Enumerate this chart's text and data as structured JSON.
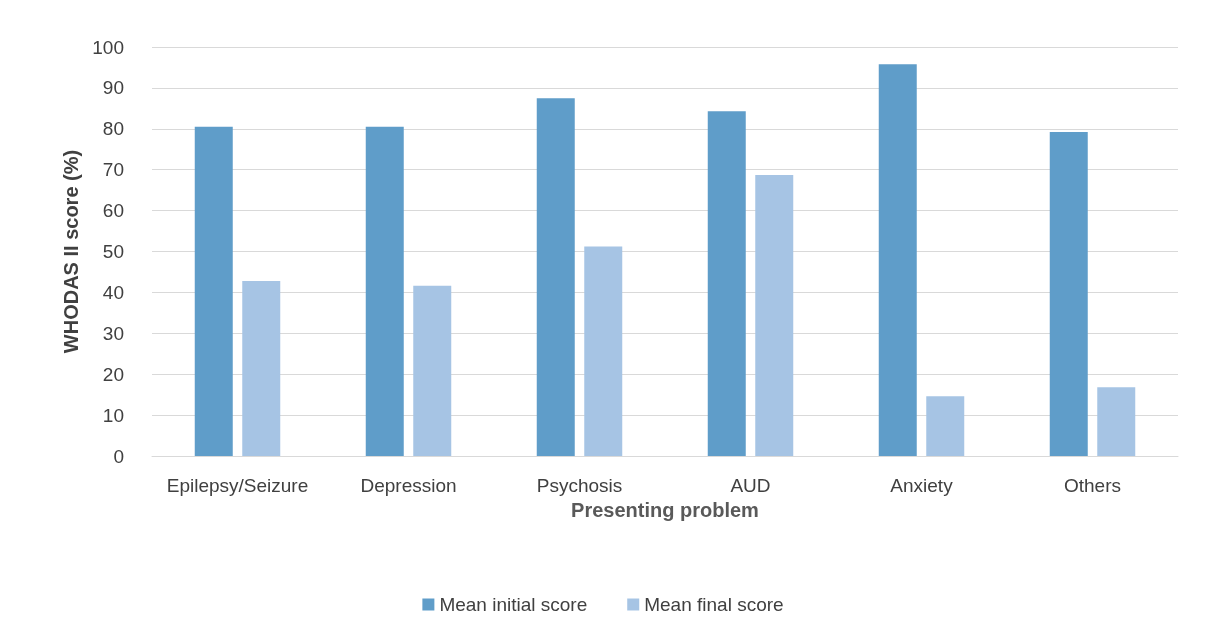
{
  "chart_data": {
    "type": "bar",
    "xlabel": "Presenting problem",
    "ylabel": "WHODAS II score (%)",
    "categories": [
      "Epilepsy/Seizure",
      "Depression",
      "Psychosis",
      "AUD",
      "Anxiety",
      "Others"
    ],
    "series": [
      {
        "name": "Mean initial score",
        "color": "#5f9dc9",
        "values": [
          80.5,
          80.5,
          87.5,
          84.3,
          95.8,
          79.2
        ]
      },
      {
        "name": "Mean final score",
        "color": "#a6c4e4",
        "values": [
          42.8,
          41.6,
          51.2,
          68.7,
          14.6,
          16.8
        ]
      }
    ],
    "ylim": [
      0,
      100
    ],
    "yticks": [
      0,
      10,
      20,
      30,
      40,
      50,
      60,
      70,
      80,
      90,
      100
    ],
    "grid": "y",
    "legend": "bottom"
  }
}
